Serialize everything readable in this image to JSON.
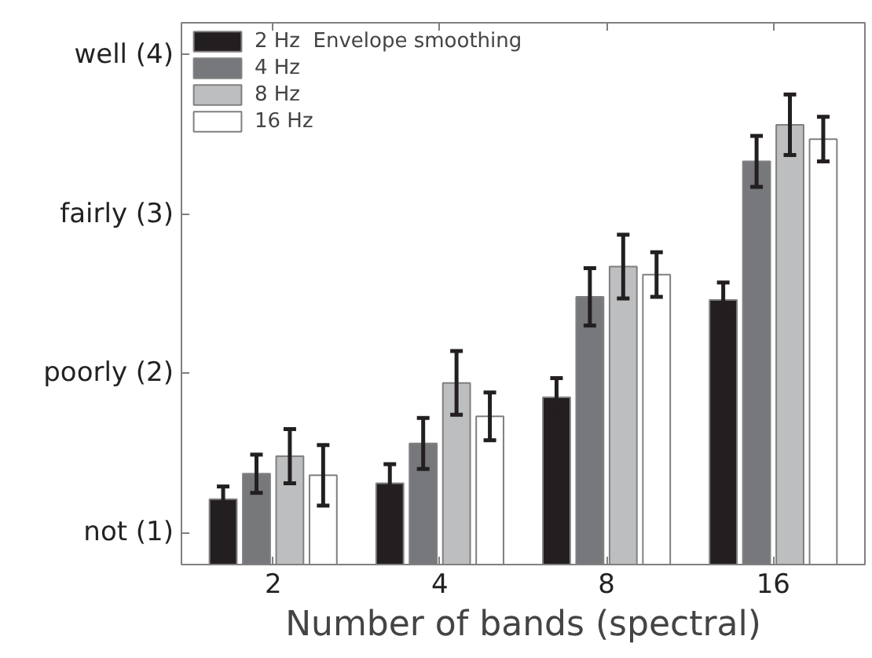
{
  "chart_data": {
    "type": "bar",
    "xlabel": "Number of bands (spectral)",
    "categories": [
      "2",
      "4",
      "8",
      "16"
    ],
    "series": [
      {
        "name": "2 Hz  Envelope smoothing",
        "color": "#231f20",
        "values": [
          1.21,
          1.31,
          1.85,
          2.46
        ],
        "errors": [
          0.08,
          0.12,
          0.12,
          0.11
        ]
      },
      {
        "name": "4 Hz",
        "color": "#77787b",
        "values": [
          1.37,
          1.56,
          2.48,
          3.33
        ],
        "errors": [
          0.12,
          0.16,
          0.18,
          0.16
        ]
      },
      {
        "name": "8 Hz",
        "color": "#bcbec0",
        "values": [
          1.48,
          1.94,
          2.67,
          3.56
        ],
        "errors": [
          0.17,
          0.2,
          0.2,
          0.19
        ]
      },
      {
        "name": "16 Hz",
        "color": "#ffffff",
        "values": [
          1.36,
          1.73,
          2.62,
          3.47
        ],
        "errors": [
          0.19,
          0.15,
          0.14,
          0.14
        ]
      }
    ],
    "ylim": [
      0.8,
      4.2
    ],
    "yticks": [
      {
        "value": 1,
        "label": "not (1)"
      },
      {
        "value": 2,
        "label": "poorly (2)"
      },
      {
        "value": 3,
        "label": "fairly (3)"
      },
      {
        "value": 4,
        "label": "well (4)"
      }
    ],
    "grid": false,
    "legend": "top left"
  }
}
